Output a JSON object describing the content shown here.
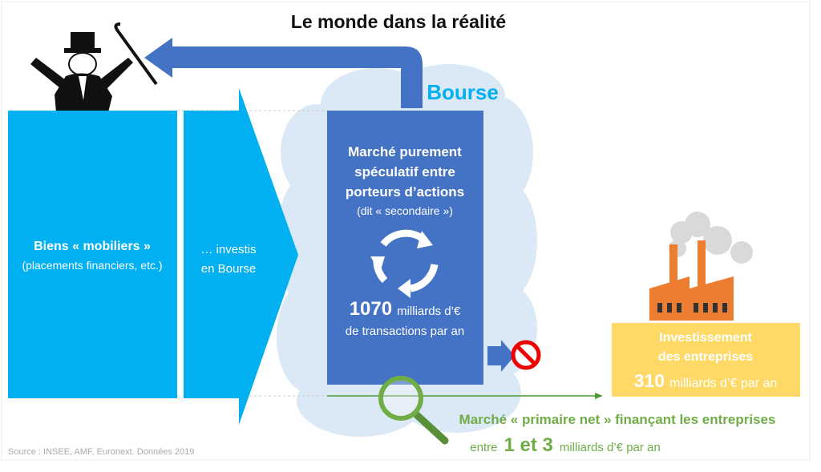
{
  "title": "Le monde dans la réalité",
  "bourse_label": "Bourse",
  "left_box": {
    "line1": "Biens « mobiliers »",
    "line2": "(placements financiers, etc.)"
  },
  "arrow_box": {
    "line1": "… investis",
    "line2": "en Bourse"
  },
  "market_box": {
    "line1": "Marché purement",
    "line2": "spéculatif entre",
    "line3": "porteurs d’actions",
    "line4": "(dit « secondaire »)",
    "amount": "1070",
    "amount_unit": "milliards d’€",
    "line6": "de transactions par an"
  },
  "investment_box": {
    "line1": "Investissement",
    "line2": "des entreprises",
    "amount": "310",
    "amount_unit": "milliards d’€ par an"
  },
  "primary_market": {
    "line1": "Marché « primaire net » finançant les entreprises",
    "prefix": "entre",
    "amount": "1 et 3",
    "amount_unit": "milliards d’€ par an"
  },
  "source": "Source : INSEE, AMF, Euronext. Données 2019"
}
